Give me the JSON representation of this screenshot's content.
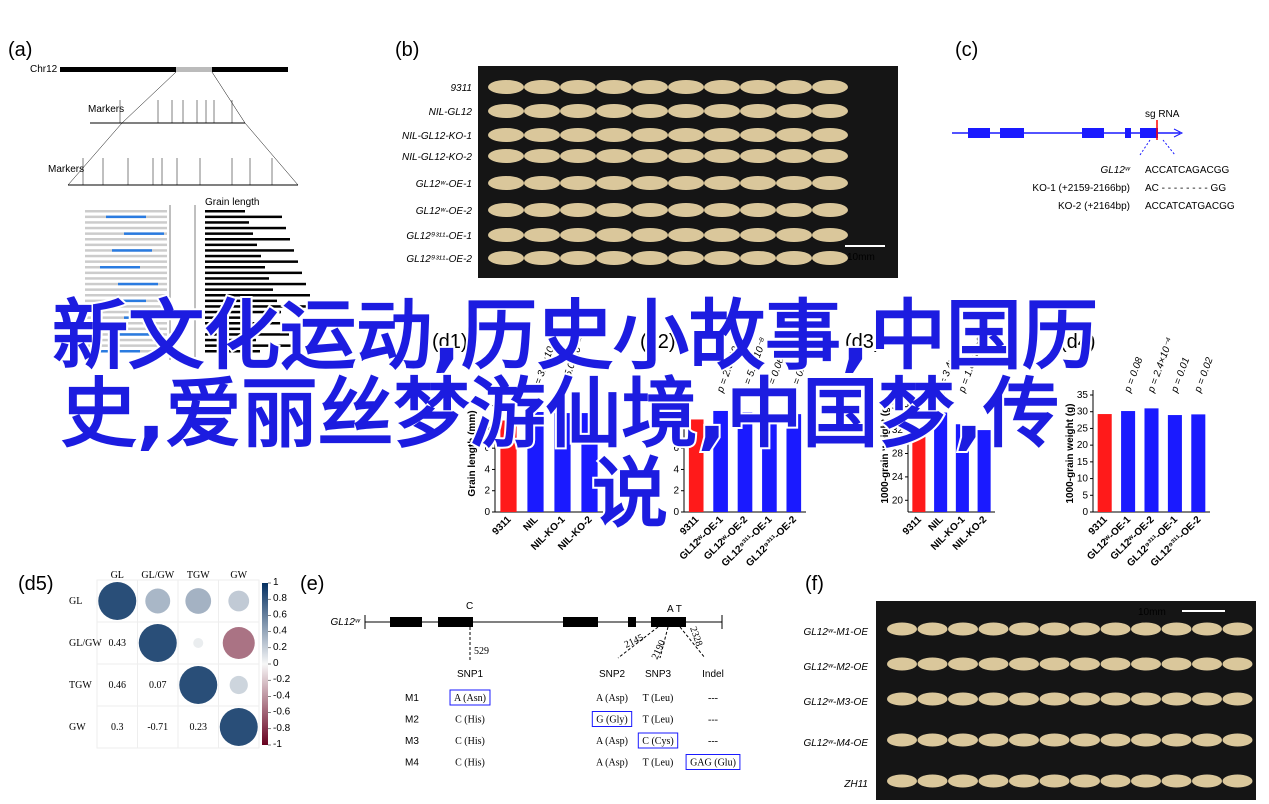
{
  "figure": {
    "overlay_lines": [
      "新文化运动,历史小故事,中国历",
      "史,爱丽丝梦游仙境,中国梦,传",
      "说"
    ],
    "a": {
      "label": "(a)",
      "chromosome": "Chr12",
      "markers_1": "Markers",
      "markers_2": "Markers",
      "trait": "Grain length"
    },
    "b": {
      "label": "(b)",
      "rows": [
        "9311",
        "NIL-GL12",
        "NIL-GL12-KO-1",
        "NIL-GL12-KO-2",
        "GL12ʷ-OE-1",
        "GL12ʷ-OE-2",
        "GL12⁹³¹¹-OE-1",
        "GL12⁹³¹¹-OE-2"
      ],
      "scale": "10mm"
    },
    "c": {
      "label": "(c)",
      "sgrna": "sg RNA",
      "rows": [
        {
          "name": "GL12ʷ",
          "seq": "ACCATCAGACGG"
        },
        {
          "name": "KO-1 (+2159-2166bp)",
          "seq": "AC - - - - - - - - GG"
        },
        {
          "name": "KO-2 (+2164bp)",
          "seq": "ACCATCATGACGG"
        }
      ]
    },
    "d5": {
      "label": "(d5)",
      "vars": [
        "GL",
        "GL/GW",
        "TGW",
        "GW"
      ],
      "matrix": [
        [
          1,
          0.43,
          0.46,
          0.3
        ],
        [
          0.43,
          1,
          0.07,
          -0.71
        ],
        [
          0.46,
          0.07,
          1,
          0.23
        ],
        [
          0.3,
          -0.71,
          0.23,
          1
        ]
      ],
      "colorbar_ticks": [
        1,
        0.8,
        0.6,
        0.4,
        0.2,
        0,
        -0.2,
        -0.4,
        -0.6,
        -0.8,
        -1
      ]
    },
    "e": {
      "label": "(e)",
      "gene": "GL12ʷ",
      "base_1": "C",
      "base_2": "A T",
      "positions": [
        529,
        2145,
        2190,
        2328
      ],
      "headers": [
        "SNP1",
        "SNP2",
        "SNP3",
        "Indel"
      ],
      "rows": [
        {
          "name": "M1",
          "cells": [
            "A (Asn)",
            "A (Asp)",
            "T (Leu)",
            "---"
          ],
          "boxed": [
            true,
            false,
            false,
            false
          ]
        },
        {
          "name": "M2",
          "cells": [
            "C (His)",
            "G (Gly)",
            "T (Leu)",
            "---"
          ],
          "boxed": [
            false,
            true,
            false,
            false
          ]
        },
        {
          "name": "M3",
          "cells": [
            "C (His)",
            "A (Asp)",
            "C (Cys)",
            "---"
          ],
          "boxed": [
            false,
            false,
            true,
            false
          ]
        },
        {
          "name": "M4",
          "cells": [
            "C (His)",
            "A (Asp)",
            "T (Leu)",
            "GAG (Glu)"
          ],
          "boxed": [
            false,
            false,
            false,
            true
          ]
        }
      ]
    },
    "f": {
      "label": "(f)",
      "rows": [
        "GL12ʷ-M1-OE",
        "GL12ʷ-M2-OE",
        "GL12ʷ-M3-OE",
        "GL12ʷ-M4-OE",
        "ZH11"
      ],
      "scale": "10mm"
    }
  },
  "chart_data": [
    {
      "type": "bar",
      "label": "(d1)",
      "ylabel": "Grain length (mm)",
      "categories": [
        "9311",
        "NIL",
        "NIL-KO-1",
        "NIL-KO-2"
      ],
      "values": [
        8.6,
        9.4,
        9.3,
        9.3
      ],
      "colors": [
        "#ff1a1a",
        "#1a1aff",
        "#1a1aff",
        "#1a1aff"
      ],
      "ylim": [
        0,
        11
      ],
      "yticks": [
        0,
        2,
        4,
        6,
        8,
        10
      ],
      "annotations": [
        "p = 3.8×10⁻⁸",
        "p = 5.0×10⁻¹²"
      ]
    },
    {
      "type": "bar",
      "label": "(d2)",
      "categories": [
        "9311",
        "GL12ʷ-OE-1",
        "GL12ʷ-OE-2",
        "GL12⁹³¹¹-OE-1",
        "GL12⁹³¹¹-OE-2"
      ],
      "values": [
        8.7,
        9.5,
        9.4,
        9.2,
        9.2
      ],
      "colors": [
        "#ff1a1a",
        "#1a1aff",
        "#1a1aff",
        "#1a1aff",
        "#1a1aff"
      ],
      "ylim": [
        0,
        11
      ],
      "yticks": [
        0,
        2,
        4,
        6,
        8
      ],
      "annotations": [
        "p = 2.0×10⁻⁵",
        "p = 5.1×10⁻⁸",
        "p = 0.06",
        "p = 0.02"
      ]
    },
    {
      "type": "bar",
      "label": "(d3)",
      "ylabel": "1000-grain weight (g)",
      "categories": [
        "9311",
        "NIL",
        "NIL-KO-1",
        "NIL-KO-2"
      ],
      "values": [
        31,
        35,
        33,
        32
      ],
      "colors": [
        "#ff1a1a",
        "#1a1aff",
        "#1a1aff",
        "#1a1aff"
      ],
      "ylim": [
        18,
        38
      ],
      "yticks": [
        20,
        24,
        28,
        32,
        36
      ],
      "annotations": [
        "p = 3.4×10⁻⁵",
        "p = 1.0×10⁻⁶"
      ]
    },
    {
      "type": "bar",
      "label": "(d4)",
      "ylabel": "1000-grain weight (g)",
      "categories": [
        "9311",
        "GL12ʷ-OE-1",
        "GL12ʷ-OE-2",
        "GL12⁹³¹¹-OE-1",
        "GL12⁹³¹¹-OE-2"
      ],
      "values": [
        29.3,
        30.2,
        31,
        29,
        29.2
      ],
      "colors": [
        "#ff1a1a",
        "#1a1aff",
        "#1a1aff",
        "#1a1aff",
        "#1a1aff"
      ],
      "ylim": [
        0,
        35
      ],
      "yticks": [
        0,
        5,
        10,
        15,
        20,
        25,
        30,
        35
      ],
      "annotations": [
        "p = 0.08",
        "p = 2.4×10⁻⁴",
        "p = 0.01",
        "p = 0.02"
      ]
    }
  ]
}
